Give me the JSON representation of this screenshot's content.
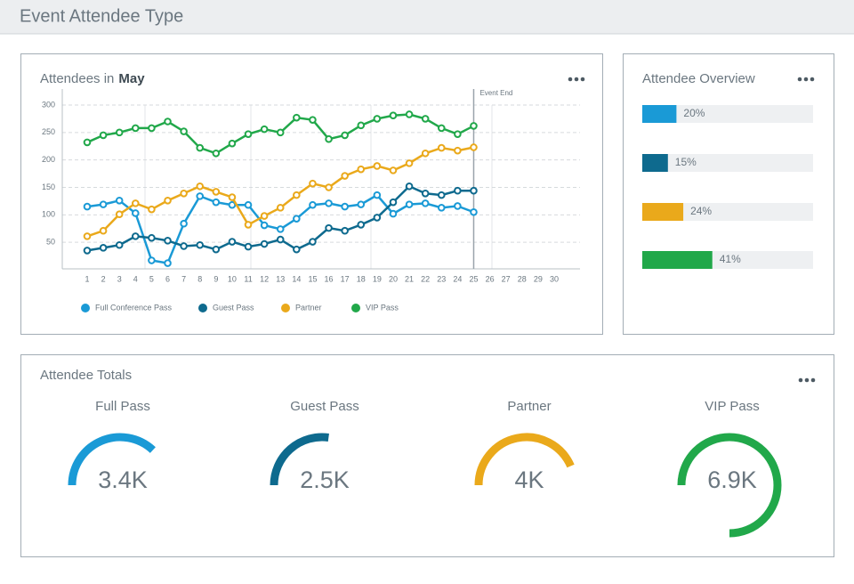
{
  "header": {
    "title": "Event Attendee Type"
  },
  "attendees_chart": {
    "type": "line",
    "title": "Attendees in",
    "month": "May",
    "categories": [
      1,
      2,
      3,
      4,
      5,
      6,
      7,
      8,
      9,
      10,
      11,
      12,
      13,
      14,
      15,
      16,
      17,
      18,
      19,
      20,
      21,
      22,
      23,
      24,
      25,
      26,
      27,
      28,
      29,
      30
    ],
    "ylim": [
      0,
      300
    ],
    "yticks": [
      50,
      100,
      150,
      200,
      250,
      300
    ],
    "grid": true,
    "annotation": {
      "text": "Event End",
      "category": 25
    },
    "series": [
      {
        "name": "Full Conference Pass",
        "color": "#1a9ad6",
        "values": [
          115,
          119,
          126,
          103,
          17,
          12,
          84,
          134,
          123,
          118,
          118,
          81,
          74,
          93,
          118,
          121,
          115,
          119,
          136,
          102,
          119,
          121,
          113,
          116,
          105,
          null,
          null,
          null,
          null,
          null
        ]
      },
      {
        "name": "Guest Pass",
        "color": "#0e6a8e",
        "values": [
          35,
          40,
          45,
          61,
          58,
          53,
          43,
          45,
          37,
          51,
          42,
          47,
          55,
          37,
          51,
          76,
          71,
          82,
          95,
          123,
          152,
          139,
          136,
          144,
          144,
          null,
          null,
          null,
          null,
          null
        ]
      },
      {
        "name": "Partner",
        "color": "#eaa91b",
        "values": [
          61,
          71,
          101,
          121,
          110,
          126,
          139,
          152,
          142,
          132,
          82,
          98,
          113,
          136,
          157,
          150,
          171,
          183,
          189,
          181,
          194,
          212,
          222,
          217,
          223,
          null,
          null,
          null,
          null,
          null
        ]
      },
      {
        "name": "VIP Pass",
        "color": "#21a84a",
        "values": [
          232,
          245,
          250,
          258,
          258,
          270,
          252,
          222,
          212,
          230,
          247,
          256,
          250,
          277,
          273,
          238,
          245,
          263,
          275,
          281,
          283,
          275,
          258,
          247,
          262,
          null,
          null,
          null,
          null,
          null
        ]
      }
    ]
  },
  "overview": {
    "title": "Attendee Overview",
    "xlim": [
      0,
      100
    ],
    "values": [
      20,
      15,
      24,
      41
    ],
    "value_labels": [
      "20%",
      "15%",
      "24%",
      "41%"
    ],
    "colors": [
      "#1a9ad6",
      "#0e6a8e",
      "#eaa91b",
      "#21a84a"
    ]
  },
  "totals": {
    "title": "Attendee Totals",
    "names": [
      "Full Pass",
      "Guest Pass",
      "Partner",
      "VIP Pass"
    ],
    "values": [
      3400,
      2500,
      4000,
      6900
    ],
    "value_labels": [
      "3.4K",
      "2.5K",
      "4K",
      "6.9K"
    ],
    "colors": [
      "#1a9ad6",
      "#0e6a8e",
      "#eaa91b",
      "#21a84a"
    ]
  }
}
